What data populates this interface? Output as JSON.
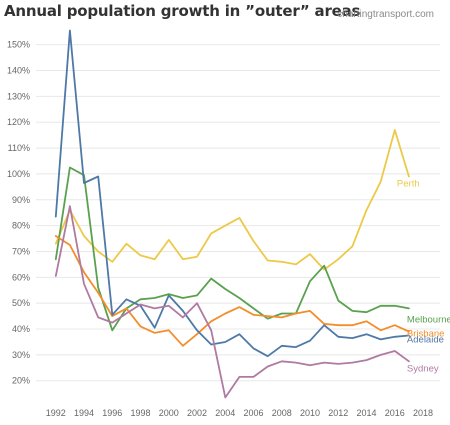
{
  "title": "Annual population growth in ”outer” areas",
  "source": "chartingtransport.com",
  "chart_data": {
    "type": "line",
    "x": [
      1992,
      1993,
      1994,
      1995,
      1996,
      1997,
      1998,
      1999,
      2000,
      2001,
      2002,
      2003,
      2004,
      2005,
      2006,
      2007,
      2008,
      2009,
      2010,
      2011,
      2012,
      2013,
      2014,
      2015,
      2016,
      2017
    ],
    "xticks": [
      "1992",
      "1994",
      "1996",
      "1998",
      "2000",
      "2002",
      "2004",
      "2006",
      "2008",
      "2010",
      "2012",
      "2014",
      "2016",
      "2018"
    ],
    "xlim": [
      1990.6,
      2019.2
    ],
    "yticks": [
      "20%",
      "30%",
      "40%",
      "50%",
      "60%",
      "70%",
      "80%",
      "90%",
      "100%",
      "110%",
      "120%",
      "130%",
      "140%",
      "150%"
    ],
    "ylim": [
      0.11,
      1.58
    ],
    "grid": "horizontal",
    "series": [
      {
        "name": "Perth",
        "color": "#EDC948",
        "values": [
          0.73,
          0.86,
          0.76,
          0.7,
          0.66,
          0.73,
          0.685,
          0.67,
          0.745,
          0.67,
          0.68,
          0.77,
          0.8,
          0.83,
          0.74,
          0.665,
          0.66,
          0.65,
          0.69,
          0.63,
          0.67,
          0.72,
          0.86,
          0.97,
          1.17,
          0.99
        ]
      },
      {
        "name": "Melbourne",
        "color": "#59A14F",
        "values": [
          0.67,
          1.025,
          0.995,
          0.56,
          0.395,
          0.48,
          0.515,
          0.52,
          0.535,
          0.52,
          0.53,
          0.595,
          0.555,
          0.52,
          0.48,
          0.44,
          0.46,
          0.46,
          0.585,
          0.645,
          0.51,
          0.47,
          0.465,
          0.49,
          0.49,
          0.48
        ]
      },
      {
        "name": "Brisbane",
        "color": "#F28E2B",
        "values": [
          0.76,
          0.725,
          0.62,
          0.54,
          0.45,
          0.48,
          0.41,
          0.385,
          0.395,
          0.335,
          0.38,
          0.43,
          0.46,
          0.485,
          0.455,
          0.45,
          0.445,
          0.46,
          0.47,
          0.42,
          0.415,
          0.415,
          0.43,
          0.395,
          0.415,
          0.39
        ]
      },
      {
        "name": "Adelaide",
        "color": "#4E79A7",
        "values": [
          0.835,
          1.555,
          0.965,
          0.99,
          0.455,
          0.515,
          0.49,
          0.405,
          0.53,
          0.47,
          0.395,
          0.34,
          0.35,
          0.38,
          0.325,
          0.295,
          0.335,
          0.33,
          0.355,
          0.415,
          0.37,
          0.365,
          0.38,
          0.36,
          0.37,
          0.375
        ]
      },
      {
        "name": "Sydney",
        "color": "#B07AA1",
        "values": [
          0.605,
          0.875,
          0.575,
          0.445,
          0.425,
          0.46,
          0.495,
          0.48,
          0.49,
          0.445,
          0.5,
          0.395,
          0.135,
          0.215,
          0.215,
          0.255,
          0.275,
          0.27,
          0.26,
          0.27,
          0.265,
          0.27,
          0.28,
          0.3,
          0.315,
          0.275
        ]
      }
    ]
  }
}
